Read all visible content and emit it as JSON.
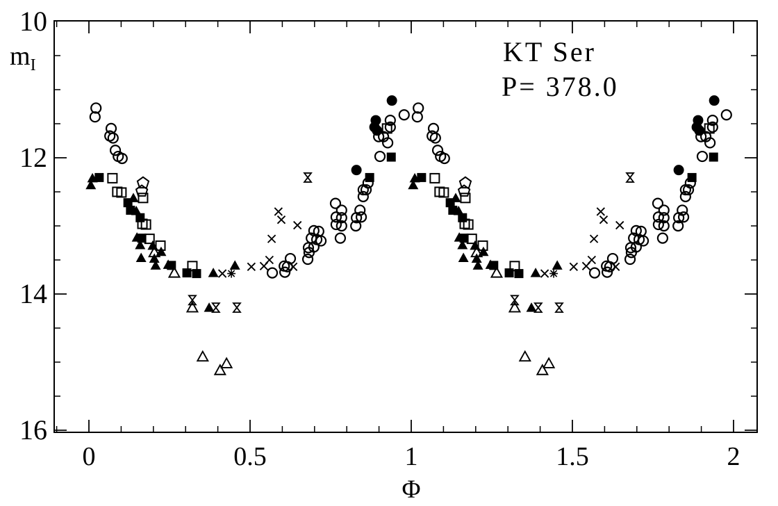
{
  "figure": {
    "title_line1": "KT Ser",
    "title_line2": "P= 378.0",
    "xlabel": "Φ",
    "ylabel_main": "m",
    "ylabel_sub": "I"
  },
  "chart_data": {
    "type": "scatter",
    "title": "KT Ser",
    "annotation": "P= 378.0",
    "xlabel": "Φ",
    "ylabel": "m_I",
    "grid": false,
    "background": "#ffffff",
    "foreground": "#000000",
    "x_axis": {
      "range": [
        -0.108,
        2.073
      ],
      "major_ticks": [
        0,
        0.5,
        1,
        1.5,
        2
      ],
      "major_labels": [
        "0",
        "0.5",
        "1",
        "1.5",
        "2"
      ],
      "minor_step": 0.1
    },
    "y_axis": {
      "range": [
        16,
        10
      ],
      "inverted": true,
      "major_ticks": [
        10,
        12,
        14,
        16
      ],
      "major_labels": [
        "10",
        "12",
        "14",
        "16"
      ],
      "minor_ticks": [
        10.5,
        11,
        11.5,
        12.5,
        13,
        13.5,
        14.5,
        15,
        15.5
      ]
    },
    "plot_rule": "phase-folded light curve: every point is plotted twice, at phase and phase+1",
    "series": [
      {
        "name": "open circles",
        "marker": "open-circle",
        "points": [
          [
            0.022,
            11.27
          ],
          [
            0.019,
            11.4
          ],
          [
            0.069,
            11.57
          ],
          [
            0.065,
            11.68
          ],
          [
            0.075,
            11.71
          ],
          [
            0.082,
            11.89
          ],
          [
            0.091,
            11.98
          ],
          [
            0.103,
            12.01
          ],
          [
            0.978,
            11.37
          ],
          [
            0.935,
            11.45
          ],
          [
            0.935,
            11.55
          ],
          [
            0.899,
            11.69
          ],
          [
            0.914,
            11.69
          ],
          [
            0.927,
            11.78
          ],
          [
            0.903,
            11.98
          ],
          [
            0.866,
            12.37
          ],
          [
            0.851,
            12.47
          ],
          [
            0.86,
            12.47
          ],
          [
            0.851,
            12.57
          ],
          [
            0.765,
            12.67
          ],
          [
            0.784,
            12.77
          ],
          [
            0.767,
            12.87
          ],
          [
            0.784,
            12.88
          ],
          [
            0.767,
            12.98
          ],
          [
            0.784,
            13.0
          ],
          [
            0.841,
            12.77
          ],
          [
            0.845,
            12.87
          ],
          [
            0.83,
            12.88
          ],
          [
            0.828,
            13.0
          ],
          [
            0.78,
            13.18
          ],
          [
            0.698,
            13.07
          ],
          [
            0.713,
            13.08
          ],
          [
            0.69,
            13.18
          ],
          [
            0.707,
            13.2
          ],
          [
            0.72,
            13.22
          ],
          [
            0.698,
            13.31
          ],
          [
            0.681,
            13.32
          ],
          [
            0.683,
            13.39
          ],
          [
            0.625,
            13.48
          ],
          [
            0.679,
            13.49
          ],
          [
            0.606,
            13.59
          ],
          [
            0.616,
            13.6
          ],
          [
            0.569,
            13.69
          ],
          [
            0.608,
            13.68
          ]
        ]
      },
      {
        "name": "filled circles",
        "marker": "filled-circle",
        "points": [
          [
            0.94,
            11.16
          ],
          [
            0.89,
            11.45
          ],
          [
            0.886,
            11.55
          ],
          [
            0.894,
            11.6
          ],
          [
            0.83,
            12.18
          ]
        ]
      },
      {
        "name": "filled squares",
        "marker": "filled-square",
        "points": [
          [
            0.032,
            12.29
          ],
          [
            0.121,
            12.66
          ],
          [
            0.129,
            12.77
          ],
          [
            0.159,
            12.88
          ],
          [
            0.164,
            13.18
          ],
          [
            0.256,
            13.58
          ],
          [
            0.304,
            13.69
          ],
          [
            0.334,
            13.7
          ],
          [
            0.938,
            11.99
          ],
          [
            0.871,
            12.29
          ]
        ]
      },
      {
        "name": "open squares",
        "marker": "open-square",
        "points": [
          [
            0.073,
            12.3
          ],
          [
            0.088,
            12.5
          ],
          [
            0.101,
            12.51
          ],
          [
            0.168,
            12.59
          ],
          [
            0.166,
            12.97
          ],
          [
            0.177,
            12.98
          ],
          [
            0.188,
            13.19
          ],
          [
            0.222,
            13.29
          ],
          [
            0.321,
            13.59
          ],
          [
            0.925,
            11.57
          ]
        ]
      },
      {
        "name": "filled triangles",
        "marker": "filled-triangle",
        "points": [
          [
            0.011,
            12.3
          ],
          [
            0.006,
            12.4
          ],
          [
            0.138,
            12.59
          ],
          [
            0.147,
            12.78
          ],
          [
            0.149,
            13.17
          ],
          [
            0.159,
            13.28
          ],
          [
            0.198,
            13.29
          ],
          [
            0.224,
            13.38
          ],
          [
            0.162,
            13.47
          ],
          [
            0.203,
            13.48
          ],
          [
            0.207,
            13.58
          ],
          [
            0.246,
            13.57
          ],
          [
            0.386,
            13.69
          ],
          [
            0.453,
            13.58
          ],
          [
            0.373,
            14.2
          ]
        ]
      },
      {
        "name": "open triangles",
        "marker": "open-triangle",
        "points": [
          [
            0.203,
            13.39
          ],
          [
            0.265,
            13.69
          ],
          [
            0.321,
            14.2
          ],
          [
            0.353,
            14.92
          ],
          [
            0.427,
            15.02
          ],
          [
            0.407,
            15.12
          ]
        ]
      },
      {
        "name": "open pentagons",
        "marker": "open-pentagon",
        "points": [
          [
            0.168,
            12.37
          ],
          [
            0.164,
            12.49
          ]
        ]
      },
      {
        "name": "crosses",
        "marker": "cross",
        "points": [
          [
            0.588,
            12.79
          ],
          [
            0.597,
            12.91
          ],
          [
            0.647,
            12.99
          ],
          [
            0.567,
            13.19
          ],
          [
            0.56,
            13.5
          ],
          [
            0.543,
            13.59
          ],
          [
            0.504,
            13.6
          ],
          [
            0.634,
            13.6
          ],
          [
            0.414,
            13.7
          ]
        ]
      },
      {
        "name": "asterisks",
        "marker": "asterisk",
        "points": [
          [
            0.442,
            13.7
          ]
        ]
      },
      {
        "name": "skeletal stars",
        "marker": "star4",
        "points": [
          [
            0.679,
            12.29
          ],
          [
            0.321,
            14.09
          ],
          [
            0.394,
            14.2
          ],
          [
            0.459,
            14.2
          ]
        ]
      }
    ]
  }
}
